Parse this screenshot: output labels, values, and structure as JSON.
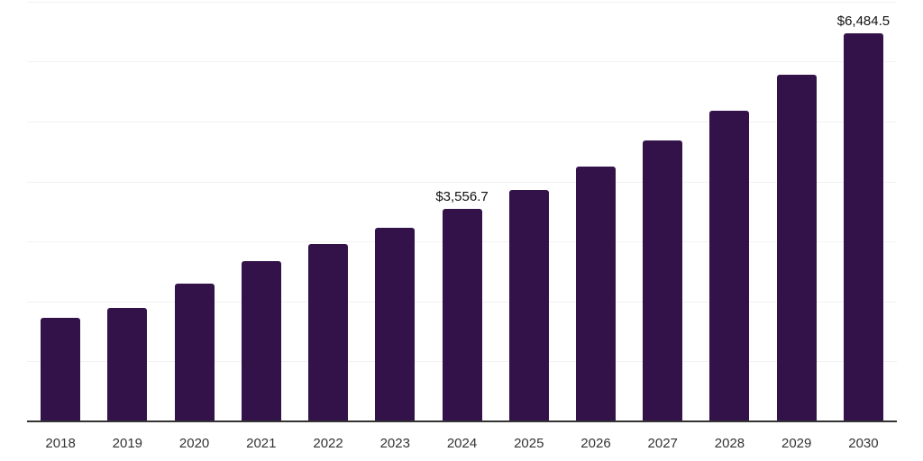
{
  "chart_data": {
    "type": "bar",
    "title": "",
    "xlabel": "",
    "ylabel": "",
    "categories": [
      "2018",
      "2019",
      "2020",
      "2021",
      "2022",
      "2023",
      "2024",
      "2025",
      "2026",
      "2027",
      "2028",
      "2029",
      "2030"
    ],
    "values": [
      1735,
      1910,
      2315,
      2685,
      2975,
      3245,
      3556.7,
      3880,
      4265,
      4700,
      5190,
      5790,
      6484.5
    ],
    "data_labels": {
      "2024": "$3,556.7",
      "2030": "$6,484.5"
    },
    "ylim": [
      0,
      7040
    ],
    "gridlines": [
      1000,
      2000,
      3000,
      4000,
      5000,
      6000,
      7000
    ],
    "grid": "horizontal",
    "legend": "none",
    "colors": {
      "bar": "#33124a",
      "axis_line": "#333333",
      "gridline": "#f2f2f2",
      "tick_label": "#333333",
      "data_label": "#111111",
      "background": "#ffffff"
    }
  }
}
